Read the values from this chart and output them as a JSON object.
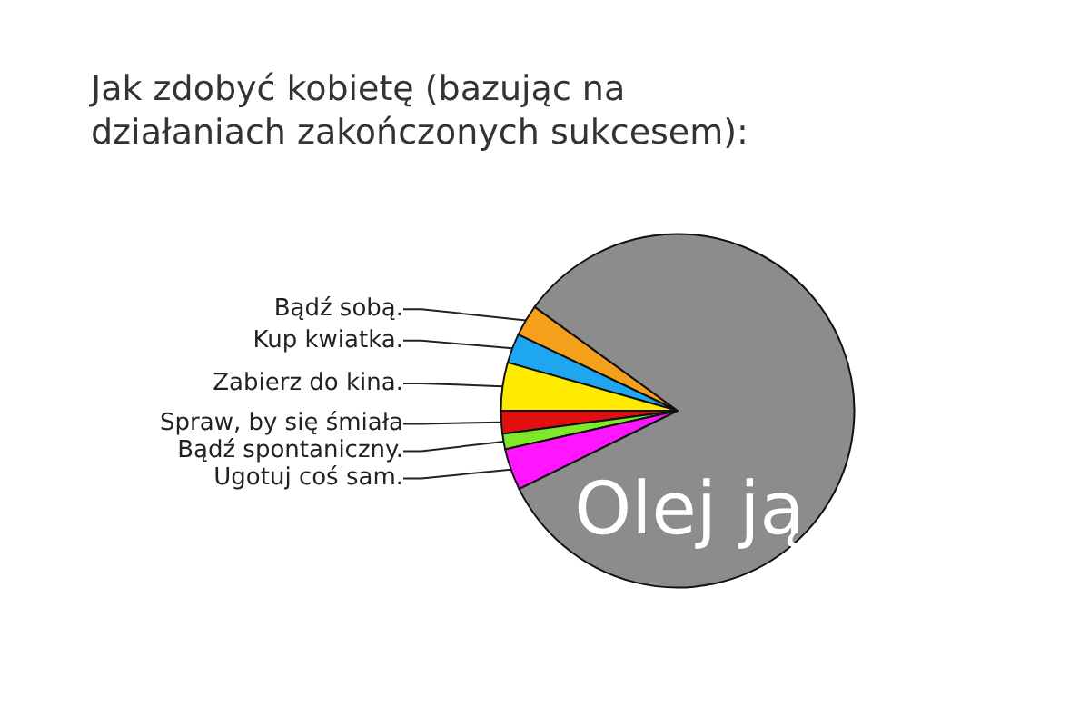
{
  "chart_data": {
    "type": "pie",
    "title": "Jak zdobyć kobietę (bazując na działaniach zakończonych sukcesem):",
    "categories": [
      "Bądź sobą.",
      "Kup kwiatka.",
      "Zabierz do kina.",
      "Spraw, by się śmiała",
      "Bądź spontaniczny.",
      "Ugotuj coś sam.",
      "Olej ją"
    ],
    "values": [
      2.9,
      2.7,
      4.4,
      2.1,
      1.4,
      3.8,
      82.7
    ],
    "colors": [
      "#f5a01a",
      "#1ea7f0",
      "#ffeb00",
      "#e01010",
      "#7ee82a",
      "#ff16ff",
      "#8c8c8c"
    ],
    "legend": false
  }
}
